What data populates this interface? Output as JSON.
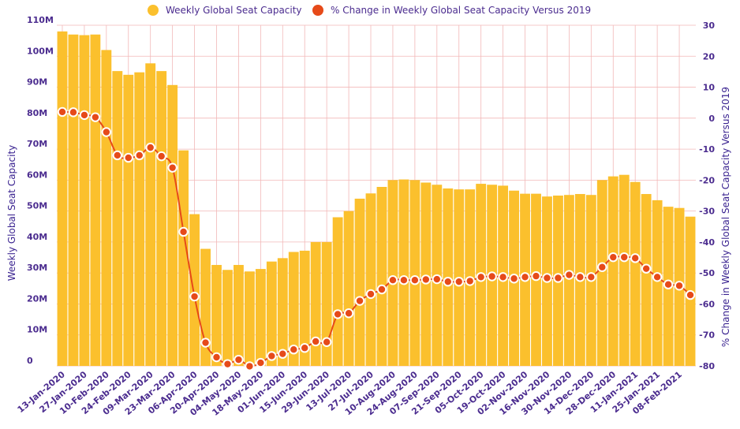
{
  "chart_data": {
    "type": "bar",
    "legend": {
      "placement": "top-center",
      "bar_series_label": "Weekly Global Seat Capacity",
      "line_series_label": "% Change in Weekly Global Seat Capacity Versus 2019"
    },
    "ylabel_left": "Weekly Global Seat Capacity",
    "ylabel_right": "% Change in Weekly Global Seat Capacity Versus 2019",
    "ylim_left": [
      0,
      110000000
    ],
    "ylim_right": [
      -80,
      30
    ],
    "yticks_left": [
      "0",
      "10M",
      "20M",
      "30M",
      "40M",
      "50M",
      "60M",
      "70M",
      "80M",
      "90M",
      "100M",
      "110M"
    ],
    "yticks_right": [
      "-80",
      "-70",
      "-60",
      "-50",
      "-40",
      "-30",
      "-20",
      "-10",
      "0",
      "10",
      "20",
      "30"
    ],
    "x_tick_labels": [
      "13-Jan-2020",
      "27-Jan-2020",
      "10-Feb-2020",
      "24-Feb-2020",
      "09-Mar-2020",
      "23-Mar-2020",
      "06-Apr-2020",
      "20-Apr-2020",
      "04-May-2020",
      "18-May-2020",
      "01-Jun-2020",
      "15-Jun-2020",
      "29-Jun-2020",
      "13-Jul-2020",
      "27-Jul-2020",
      "10-Aug-2020",
      "24-Aug-2020",
      "07-Sep-2020",
      "21-Sep-2020",
      "05-Oct-2020",
      "19-Oct-2020",
      "02-Nov-2020",
      "16-Nov-2020",
      "30-Nov-2020",
      "14-Dec-2020",
      "28-Dec-2020",
      "11-Jan-2021",
      "25-Jan-2021",
      "08-Feb-2021"
    ],
    "series": [
      {
        "name": "Weekly Global Seat Capacity",
        "type": "bar",
        "color": "#fbc02d",
        "values": [
          108,
          107,
          106.8,
          107,
          102,
          95.2,
          94,
          94.8,
          97.7,
          95.2,
          90.7,
          69.6,
          49,
          37.8,
          32.6,
          31,
          32.6,
          30.5,
          31.3,
          33.7,
          34.8,
          36.8,
          37.2,
          40,
          40,
          48,
          50,
          54,
          55.7,
          57.8,
          60,
          60.2,
          60,
          59.2,
          58.5,
          57.3,
          57,
          57,
          58.8,
          58.5,
          58.2,
          56.6,
          55.6,
          55.6,
          54.7,
          55,
          55.2,
          55.5,
          55.2,
          60,
          61.2,
          61.7,
          59.4,
          55.5,
          53.5,
          51.4,
          51,
          48.2
        ],
        "unit": "millions"
      },
      {
        "name": "% Change in Weekly Global Seat Capacity Versus 2019",
        "type": "line",
        "color": "#e64a19",
        "values": [
          2,
          1.9,
          1,
          0.3,
          -4.5,
          -12,
          -12.8,
          -12,
          -9.5,
          -12.3,
          -16,
          -36.7,
          -57.6,
          -72.5,
          -77.2,
          -79.4,
          -78,
          -80.1,
          -79,
          -76.8,
          -76.1,
          -74.7,
          -74.2,
          -72.1,
          -72.3,
          -63.3,
          -63,
          -59,
          -56.8,
          -55.3,
          -52.3,
          -52.3,
          -52.3,
          -52.1,
          -52,
          -52.8,
          -52.8,
          -52.6,
          -51.3,
          -51.1,
          -51.3,
          -51.8,
          -51.3,
          -51,
          -51.6,
          -51.6,
          -50.6,
          -51.3,
          -51.3,
          -48.1,
          -44.9,
          -44.9,
          -45.2,
          -48.6,
          -51.3,
          -53.7,
          -54.1,
          -57.1
        ]
      }
    ]
  }
}
